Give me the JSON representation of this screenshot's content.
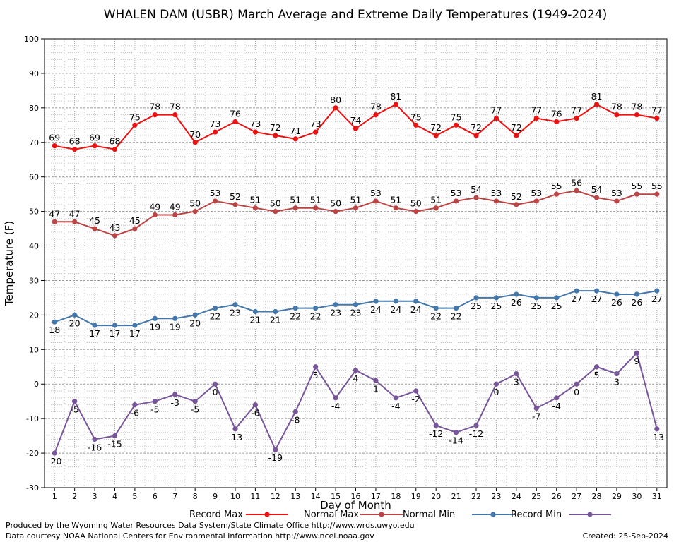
{
  "chart_data": {
    "type": "line",
    "title": "WHALEN DAM (USBR) March Average and Extreme Daily Temperatures (1949-2024)",
    "xlabel": "Day of Month",
    "ylabel": "Temperature (F)",
    "ylim": [
      -30,
      100
    ],
    "yticks": [
      -30,
      -20,
      -10,
      0,
      10,
      20,
      30,
      40,
      50,
      60,
      70,
      80,
      90,
      100
    ],
    "x": [
      1,
      2,
      3,
      4,
      5,
      6,
      7,
      8,
      9,
      10,
      11,
      12,
      13,
      14,
      15,
      16,
      17,
      18,
      19,
      20,
      21,
      22,
      23,
      24,
      25,
      26,
      27,
      28,
      29,
      30,
      31
    ],
    "grid": true,
    "legend_position": "bottom",
    "series": [
      {
        "name": "Record Max",
        "color": "#ee1111",
        "values": [
          69,
          68,
          69,
          68,
          75,
          78,
          78,
          70,
          73,
          76,
          73,
          72,
          71,
          73,
          80,
          74,
          78,
          81,
          75,
          72,
          75,
          72,
          77,
          72,
          77,
          76,
          77,
          81,
          78,
          78,
          77
        ],
        "label_position": "above"
      },
      {
        "name": "Normal Max",
        "color": "#bb4444",
        "values": [
          47,
          47,
          45,
          43,
          45,
          49,
          49,
          50,
          53,
          52,
          51,
          50,
          51,
          51,
          50,
          51,
          53,
          51,
          50,
          51,
          53,
          54,
          53,
          52,
          53,
          55,
          56,
          54,
          53,
          55,
          55
        ],
        "label_position": "above"
      },
      {
        "name": "Normal Min",
        "color": "#4477aa",
        "values": [
          18,
          20,
          17,
          17,
          17,
          19,
          19,
          20,
          22,
          23,
          21,
          21,
          22,
          22,
          23,
          23,
          24,
          24,
          24,
          22,
          22,
          25,
          25,
          26,
          25,
          25,
          27,
          27,
          26,
          26,
          27
        ],
        "label_position": "below"
      },
      {
        "name": "Record Min",
        "color": "#775599",
        "values": [
          -20,
          -5,
          -16,
          -15,
          -6,
          -5,
          -3,
          -5,
          0,
          -13,
          -6,
          -19,
          -8,
          5,
          -4,
          4,
          1,
          -4,
          -2,
          -12,
          -14,
          -12,
          0,
          3,
          -7,
          -4,
          0,
          5,
          3,
          9,
          -13
        ],
        "label_position": "below"
      }
    ],
    "footer": {
      "line1": "Produced by the Wyoming Water Resources Data System/State Climate Office http://www.wrds.uwyo.edu",
      "line2": "Data courtesy NOAA National Centers for Environmental Information http://www.ncei.noaa.gov",
      "created": "Created:  25-Sep-2024"
    }
  }
}
